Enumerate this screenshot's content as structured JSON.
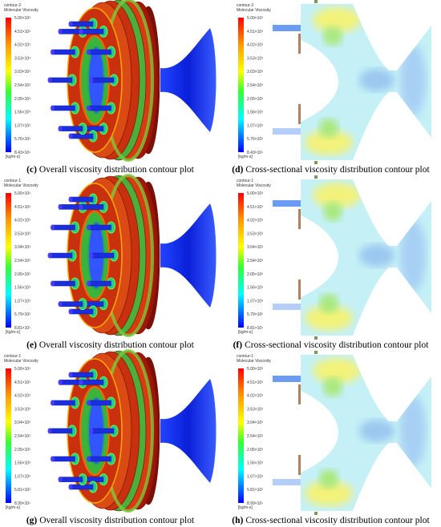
{
  "panels": [
    {
      "label": "(c)",
      "caption": "Overall viscosity distribution contour plot",
      "legend_title": "contour-2",
      "legend_subtitle": "Molecular Viscosity",
      "unit": "[kg/m-s]",
      "ticks": [
        "5.00×10³",
        "4.51×10³",
        "4.02×10³",
        "3.53×10³",
        "3.03×10³",
        "2.54×10³",
        "2.05×10³",
        "1.56×10³",
        "1.07×10³",
        "5.76×10²",
        "8.43×10¹"
      ]
    },
    {
      "label": "(d)",
      "caption": "Cross-sectional viscosity distribution contour plot",
      "legend_title": "contour-3",
      "legend_subtitle": "Molecular Viscosity",
      "unit": "[kg/m-s]",
      "ticks": [
        "5.00×10³",
        "4.51×10³",
        "4.02×10³",
        "3.53×10³",
        "3.03×10³",
        "2.54×10³",
        "2.05×10³",
        "1.56×10³",
        "1.07×10³",
        "5.76×10²",
        "8.43×10¹"
      ]
    },
    {
      "label": "(e)",
      "caption": "Overall viscosity distribution contour plot",
      "legend_title": "contour-1",
      "legend_subtitle": "Molecular Viscosity",
      "unit": "[kg/m-s]",
      "ticks": [
        "5.00×10³",
        "4.51×10³",
        "4.02×10³",
        "3.53×10³",
        "3.04×10³",
        "2.54×10³",
        "2.05×10³",
        "1.56×10³",
        "1.07×10³",
        "5.79×10²",
        "8.81×10¹"
      ]
    },
    {
      "label": "(f)",
      "caption": "Cross-sectional viscosity distribution contour plot",
      "legend_title": "contour-1",
      "legend_subtitle": "Molecular Viscosity",
      "unit": "[kg/m-s]",
      "ticks": [
        "5.00×10³",
        "4.51×10³",
        "4.02×10³",
        "3.53×10³",
        "3.04×10³",
        "2.54×10³",
        "2.05×10³",
        "1.56×10³",
        "1.07×10³",
        "5.79×10²",
        "8.81×10¹"
      ]
    },
    {
      "label": "(g)",
      "caption": "Overall viscosity distribution contour plot",
      "legend_title": "contour-1",
      "legend_subtitle": "Molecular Viscosity",
      "unit": "[kg/m-s]",
      "ticks": [
        "5.00×10³",
        "4.51×10³",
        "4.02×10³",
        "3.53×10³",
        "3.04×10³",
        "2.54×10³",
        "2.05×10³",
        "1.56×10³",
        "1.07×10³",
        "5.81×10²",
        "8.99×10¹"
      ]
    },
    {
      "label": "(h)",
      "caption": "Cross-sectional viscosity distribution contour plot",
      "legend_title": "contour-1",
      "legend_subtitle": "Molecular Viscosity",
      "unit": "[kg/m-s]",
      "ticks": [
        "5.00×10³",
        "4.51×10³",
        "4.02×10³",
        "3.53×10³",
        "3.04×10³",
        "2.54×10³",
        "2.05×10³",
        "1.56×10³",
        "1.07×10³",
        "5.81×10²",
        "8.99×10¹"
      ]
    }
  ]
}
